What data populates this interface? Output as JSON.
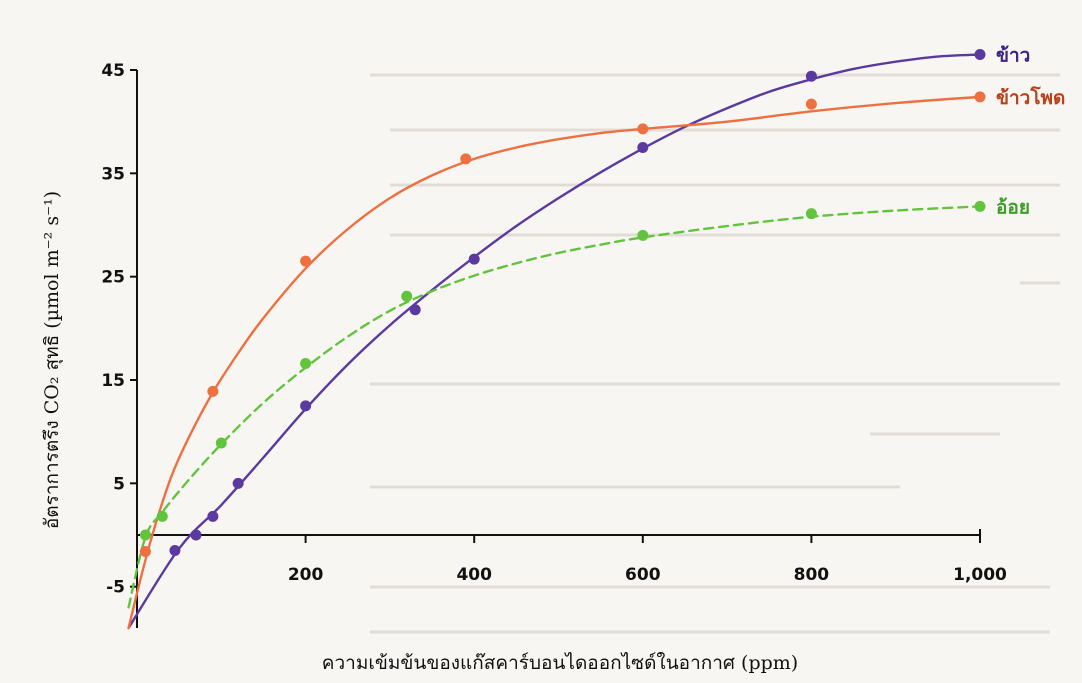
{
  "chart_data": {
    "type": "line",
    "xlabel": "ความเข้มข้นของแก๊สคาร์บอนไดออกไซด์ในอากาศ (ppm)",
    "ylabel": "อัตราการตรึง CO₂ สุทธิ (µmol m⁻² s⁻¹)",
    "xlim": [
      0,
      1000
    ],
    "ylim": [
      -9,
      45
    ],
    "x_ticks": [
      200,
      400,
      600,
      800,
      1000
    ],
    "x_tick_labels": [
      "200",
      "400",
      "600",
      "800",
      "1,000"
    ],
    "y_ticks": [
      -5,
      5,
      15,
      25,
      35,
      45
    ],
    "y_tick_labels": [
      "-5",
      "5",
      "15",
      "25",
      "35",
      "45"
    ],
    "grid": false,
    "legend_placement": "right, at line ends",
    "series": [
      {
        "name": "ข้าว",
        "color": "#5b3aa0",
        "style": "solid",
        "points": [
          [
            45,
            -1.5
          ],
          [
            70,
            0
          ],
          [
            90,
            1.8
          ],
          [
            120,
            5
          ],
          [
            200,
            12.5
          ],
          [
            330,
            21.8
          ],
          [
            400,
            26.7
          ],
          [
            600,
            37.5
          ],
          [
            800,
            44.4
          ],
          [
            1000,
            46.5
          ]
        ],
        "curve": [
          [
            -10,
            -9
          ],
          [
            50,
            -1.3
          ],
          [
            100,
            2.9
          ],
          [
            150,
            7.5
          ],
          [
            200,
            12.2
          ],
          [
            250,
            16.5
          ],
          [
            300,
            20.3
          ],
          [
            350,
            23.7
          ],
          [
            400,
            26.9
          ],
          [
            450,
            29.9
          ],
          [
            500,
            32.6
          ],
          [
            550,
            35.1
          ],
          [
            600,
            37.4
          ],
          [
            650,
            39.5
          ],
          [
            700,
            41.3
          ],
          [
            750,
            42.9
          ],
          [
            800,
            44.1
          ],
          [
            850,
            45.1
          ],
          [
            900,
            45.8
          ],
          [
            950,
            46.3
          ],
          [
            1000,
            46.5
          ]
        ]
      },
      {
        "name": "ข้าวโพด",
        "color": "#ee7040",
        "style": "solid",
        "points": [
          [
            10,
            -1.6
          ],
          [
            90,
            13.9
          ],
          [
            200,
            26.5
          ],
          [
            390,
            36.4
          ],
          [
            600,
            39.3
          ],
          [
            800,
            41.7
          ],
          [
            1000,
            42.4
          ]
        ],
        "curve": [
          [
            -10,
            -9
          ],
          [
            5,
            -4
          ],
          [
            20,
            0.5
          ],
          [
            40,
            5.5
          ],
          [
            60,
            9.2
          ],
          [
            90,
            13.8
          ],
          [
            120,
            17.6
          ],
          [
            150,
            21.0
          ],
          [
            200,
            25.8
          ],
          [
            250,
            29.6
          ],
          [
            300,
            32.6
          ],
          [
            350,
            34.8
          ],
          [
            400,
            36.4
          ],
          [
            450,
            37.5
          ],
          [
            500,
            38.3
          ],
          [
            550,
            38.9
          ],
          [
            600,
            39.3
          ],
          [
            700,
            40.0
          ],
          [
            800,
            41.0
          ],
          [
            900,
            41.8
          ],
          [
            1000,
            42.4
          ]
        ]
      },
      {
        "name": "อ้อย",
        "color": "#62c43d",
        "style": "dashed",
        "points": [
          [
            10,
            0
          ],
          [
            30,
            1.8
          ],
          [
            100,
            8.9
          ],
          [
            200,
            16.6
          ],
          [
            320,
            23.1
          ],
          [
            600,
            29
          ],
          [
            800,
            31.1
          ],
          [
            1000,
            31.8
          ]
        ],
        "curve": [
          [
            -10,
            -7
          ],
          [
            10,
            -0.2
          ],
          [
            30,
            2.2
          ],
          [
            60,
            5.2
          ],
          [
            100,
            8.8
          ],
          [
            150,
            12.8
          ],
          [
            200,
            16.2
          ],
          [
            250,
            19.2
          ],
          [
            300,
            21.7
          ],
          [
            350,
            23.6
          ],
          [
            400,
            25.1
          ],
          [
            450,
            26.3
          ],
          [
            500,
            27.3
          ],
          [
            550,
            28.1
          ],
          [
            600,
            28.8
          ],
          [
            700,
            29.9
          ],
          [
            800,
            30.8
          ],
          [
            900,
            31.4
          ],
          [
            1000,
            31.8
          ]
        ]
      }
    ]
  }
}
